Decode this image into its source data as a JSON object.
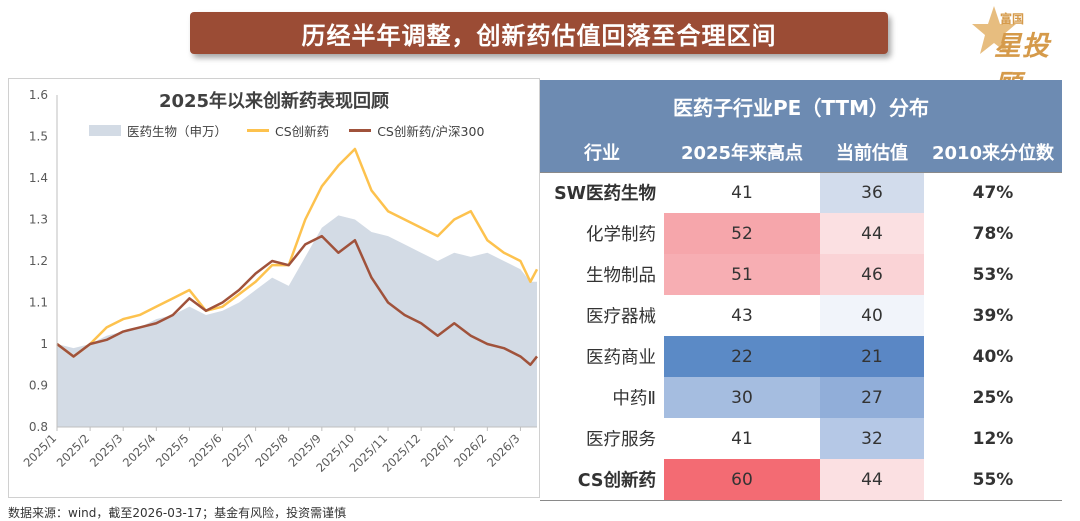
{
  "banner": {
    "title": "历经半年调整，创新药估值回落至合理区间"
  },
  "logo": {
    "small_text": "富国",
    "big_text": "星投顾"
  },
  "chart_data": [
    {
      "type": "line",
      "title": "2025年以来创新药表现回顾",
      "xlabel": "",
      "ylabel": "",
      "ylim": [
        0.8,
        1.6
      ],
      "yticks": [
        "0.8",
        "0.9",
        "1",
        "1.1",
        "1.2",
        "1.3",
        "1.4",
        "1.5",
        "1.6"
      ],
      "xticks": [
        "2025/1",
        "2025/2",
        "2025/3",
        "2025/4",
        "2025/5",
        "2025/6",
        "2025/7",
        "2025/8",
        "2025/9",
        "2025/10",
        "2025/11",
        "2025/12",
        "2026/1",
        "2026/2",
        "2026/3"
      ],
      "grid": false,
      "legend_position": "top",
      "x": [
        0,
        0.5,
        1,
        1.5,
        2,
        2.5,
        3,
        3.5,
        4,
        4.5,
        5,
        5.5,
        6,
        6.5,
        7,
        7.5,
        8,
        8.5,
        9,
        9.5,
        10,
        10.5,
        11,
        11.5,
        12,
        12.5,
        13,
        13.5,
        14,
        14.3,
        14.5
      ],
      "series": [
        {
          "name": "医药生物（申万）",
          "kind": "area",
          "color": "#d3dbe5",
          "values": [
            1.0,
            0.99,
            1.0,
            1.02,
            1.03,
            1.04,
            1.06,
            1.07,
            1.09,
            1.07,
            1.08,
            1.1,
            1.13,
            1.16,
            1.14,
            1.21,
            1.28,
            1.31,
            1.3,
            1.27,
            1.26,
            1.24,
            1.22,
            1.2,
            1.22,
            1.21,
            1.22,
            1.2,
            1.18,
            1.15,
            1.15
          ]
        },
        {
          "name": "CS创新药",
          "kind": "line",
          "color": "#fdc24e",
          "values": [
            1.0,
            0.97,
            1.0,
            1.04,
            1.06,
            1.07,
            1.09,
            1.11,
            1.13,
            1.08,
            1.09,
            1.12,
            1.15,
            1.19,
            1.19,
            1.3,
            1.38,
            1.43,
            1.47,
            1.37,
            1.32,
            1.3,
            1.28,
            1.26,
            1.3,
            1.32,
            1.25,
            1.22,
            1.2,
            1.15,
            1.18
          ]
        },
        {
          "name": "CS创新药/沪深300",
          "kind": "line",
          "color": "#a0523b",
          "values": [
            1.0,
            0.97,
            1.0,
            1.01,
            1.03,
            1.04,
            1.05,
            1.07,
            1.11,
            1.08,
            1.1,
            1.13,
            1.17,
            1.2,
            1.19,
            1.24,
            1.26,
            1.22,
            1.25,
            1.16,
            1.1,
            1.07,
            1.05,
            1.02,
            1.05,
            1.02,
            1.0,
            0.99,
            0.97,
            0.95,
            0.97
          ]
        }
      ]
    },
    {
      "type": "table",
      "title": "医药子行业PE（TTM）分布",
      "columns": [
        "行业",
        "2025年来高点",
        "当前估值",
        "2010来分位数"
      ],
      "rows": [
        {
          "cat": "SW医药生物",
          "high": "41",
          "cur": "36",
          "pct": "47%",
          "bold": true,
          "high_bg": "#ffffff",
          "cur_bg": "#d2dcec"
        },
        {
          "cat": "化学制药",
          "high": "52",
          "cur": "44",
          "pct": "78%",
          "bold": false,
          "high_bg": "#f6a6ab",
          "cur_bg": "#fbe0e2"
        },
        {
          "cat": "生物制品",
          "high": "51",
          "cur": "46",
          "pct": "53%",
          "bold": false,
          "high_bg": "#f7aeb3",
          "cur_bg": "#fad3d6"
        },
        {
          "cat": "医疗器械",
          "high": "43",
          "cur": "40",
          "pct": "39%",
          "bold": false,
          "high_bg": "#ffffff",
          "cur_bg": "#f1f4fa"
        },
        {
          "cat": "医药商业",
          "high": "22",
          "cur": "21",
          "pct": "40%",
          "bold": false,
          "high_bg": "#5b8ac6",
          "cur_bg": "#5a87c5"
        },
        {
          "cat": "中药Ⅱ",
          "high": "30",
          "cur": "27",
          "pct": "25%",
          "bold": false,
          "high_bg": "#a5bde0",
          "cur_bg": "#91aed9"
        },
        {
          "cat": "医疗服务",
          "high": "41",
          "cur": "32",
          "pct": "12%",
          "bold": false,
          "high_bg": "#ffffff",
          "cur_bg": "#b5c8e6"
        },
        {
          "cat": "CS创新药",
          "high": "60",
          "cur": "44",
          "pct": "55%",
          "bold": true,
          "high_bg": "#f36b73",
          "cur_bg": "#fbe0e2"
        }
      ]
    }
  ],
  "footnote": "数据来源：wind，截至2026-03-17；基金有风险，投资需谨慎"
}
